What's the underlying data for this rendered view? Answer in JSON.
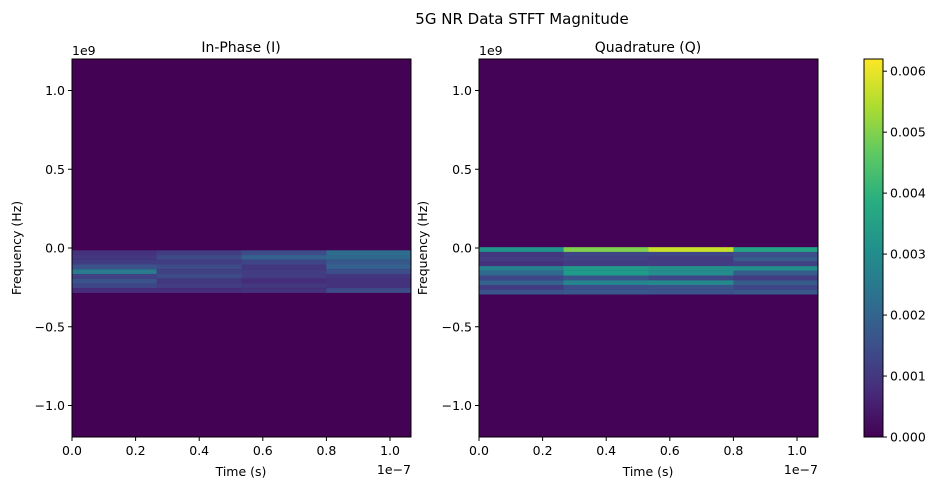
{
  "suptitle": "5G NR Data STFT Magnitude",
  "chart_data": [
    {
      "type": "heatmap",
      "title": "In-Phase (I)",
      "xlabel": "Time (s)",
      "ylabel": "Frequency (Hz)",
      "x_offset_text": "1e−7",
      "y_offset_text": "1e9",
      "xlim": [
        0,
        1.066e-07
      ],
      "ylim": [
        -1200000000.0,
        1200000000.0
      ],
      "x_ticks": [
        0,
        2e-08,
        4e-08,
        6e-08,
        8e-08,
        1e-07
      ],
      "x_tick_labels": [
        "0.0",
        "0.2",
        "0.4",
        "0.6",
        "0.8",
        "1.0"
      ],
      "y_ticks": [
        1000000000.0,
        500000000.0,
        0,
        -500000000.0,
        -1000000000.0
      ],
      "y_tick_labels": [
        "1.0",
        "0.5",
        "0.0",
        "−0.5",
        "−1.0"
      ],
      "time_bin_edges": [
        0,
        2.66e-08,
        5.33e-08,
        8e-08,
        1.066e-07
      ],
      "background_magnitude": 2e-05,
      "bands": [
        {
          "frequency": -30000000.0,
          "magnitude": [
            0.0009,
            0.0011,
            0.0014,
            0.0022
          ]
        },
        {
          "frequency": -60000000.0,
          "magnitude": [
            0.001,
            0.0014,
            0.0019,
            0.0021
          ]
        },
        {
          "frequency": -90000000.0,
          "magnitude": [
            0.0011,
            0.0011,
            0.0013,
            0.0017
          ]
        },
        {
          "frequency": -120000000.0,
          "magnitude": [
            0.0016,
            0.0014,
            0.001,
            0.0019
          ]
        },
        {
          "frequency": -150000000.0,
          "magnitude": [
            0.0026,
            0.0012,
            0.0011,
            0.0015
          ]
        },
        {
          "frequency": -180000000.0,
          "magnitude": [
            0.0012,
            0.0014,
            0.0011,
            0.001
          ]
        },
        {
          "frequency": -210000000.0,
          "magnitude": [
            0.0016,
            0.001,
            0.0008,
            0.0009
          ]
        },
        {
          "frequency": -240000000.0,
          "magnitude": [
            0.0013,
            0.0011,
            0.001,
            0.0009
          ]
        },
        {
          "frequency": -270000000.0,
          "magnitude": [
            0.0008,
            0.0008,
            0.0009,
            0.0014
          ]
        }
      ]
    },
    {
      "type": "heatmap",
      "title": "Quadrature (Q)",
      "xlabel": "Time (s)",
      "ylabel": "Frequency (Hz)",
      "x_offset_text": "1e−7",
      "y_offset_text": "1e9",
      "xlim": [
        0,
        1.066e-07
      ],
      "ylim": [
        -1200000000.0,
        1200000000.0
      ],
      "x_ticks": [
        0,
        2e-08,
        4e-08,
        6e-08,
        8e-08,
        1e-07
      ],
      "x_tick_labels": [
        "0.0",
        "0.2",
        "0.4",
        "0.6",
        "0.8",
        "1.0"
      ],
      "y_ticks": [
        1000000000.0,
        500000000.0,
        0,
        -500000000.0,
        -1000000000.0
      ],
      "y_tick_labels": [
        "1.0",
        "0.5",
        "0.0",
        "−0.5",
        "−1.0"
      ],
      "time_bin_edges": [
        0,
        2.66e-08,
        5.33e-08,
        8e-08,
        1.066e-07
      ],
      "background_magnitude": 3e-05,
      "bands": [
        {
          "frequency": -10000000.0,
          "magnitude": [
            0.0032,
            0.005,
            0.0057,
            0.0036
          ]
        },
        {
          "frequency": -40000000.0,
          "magnitude": [
            0.001,
            0.0013,
            0.0013,
            0.0015
          ]
        },
        {
          "frequency": -70000000.0,
          "magnitude": [
            0.0011,
            0.0012,
            0.0011,
            0.0018
          ]
        },
        {
          "frequency": -100000000.0,
          "magnitude": [
            0.0009,
            0.0011,
            0.0011,
            0.0012
          ]
        },
        {
          "frequency": -130000000.0,
          "magnitude": [
            0.0027,
            0.0033,
            0.0031,
            0.003
          ]
        },
        {
          "frequency": -160000000.0,
          "magnitude": [
            0.0021,
            0.0034,
            0.003,
            0.0018
          ]
        },
        {
          "frequency": -190000000.0,
          "magnitude": [
            0.0013,
            0.0016,
            0.0013,
            0.0011
          ]
        },
        {
          "frequency": -220000000.0,
          "magnitude": [
            0.0019,
            0.0028,
            0.0029,
            0.0018
          ]
        },
        {
          "frequency": -250000000.0,
          "magnitude": [
            0.0011,
            0.0015,
            0.0016,
            0.0013
          ]
        },
        {
          "frequency": -280000000.0,
          "magnitude": [
            0.0016,
            0.0017,
            0.0016,
            0.0017
          ]
        }
      ]
    }
  ],
  "colorbar": {
    "colormap": "viridis",
    "range": [
      0,
      0.0062
    ],
    "ticks": [
      0,
      0.001,
      0.002,
      0.003,
      0.004,
      0.005,
      0.006
    ],
    "tick_labels": [
      "0.000",
      "0.001",
      "0.002",
      "0.003",
      "0.004",
      "0.005",
      "0.006"
    ]
  }
}
